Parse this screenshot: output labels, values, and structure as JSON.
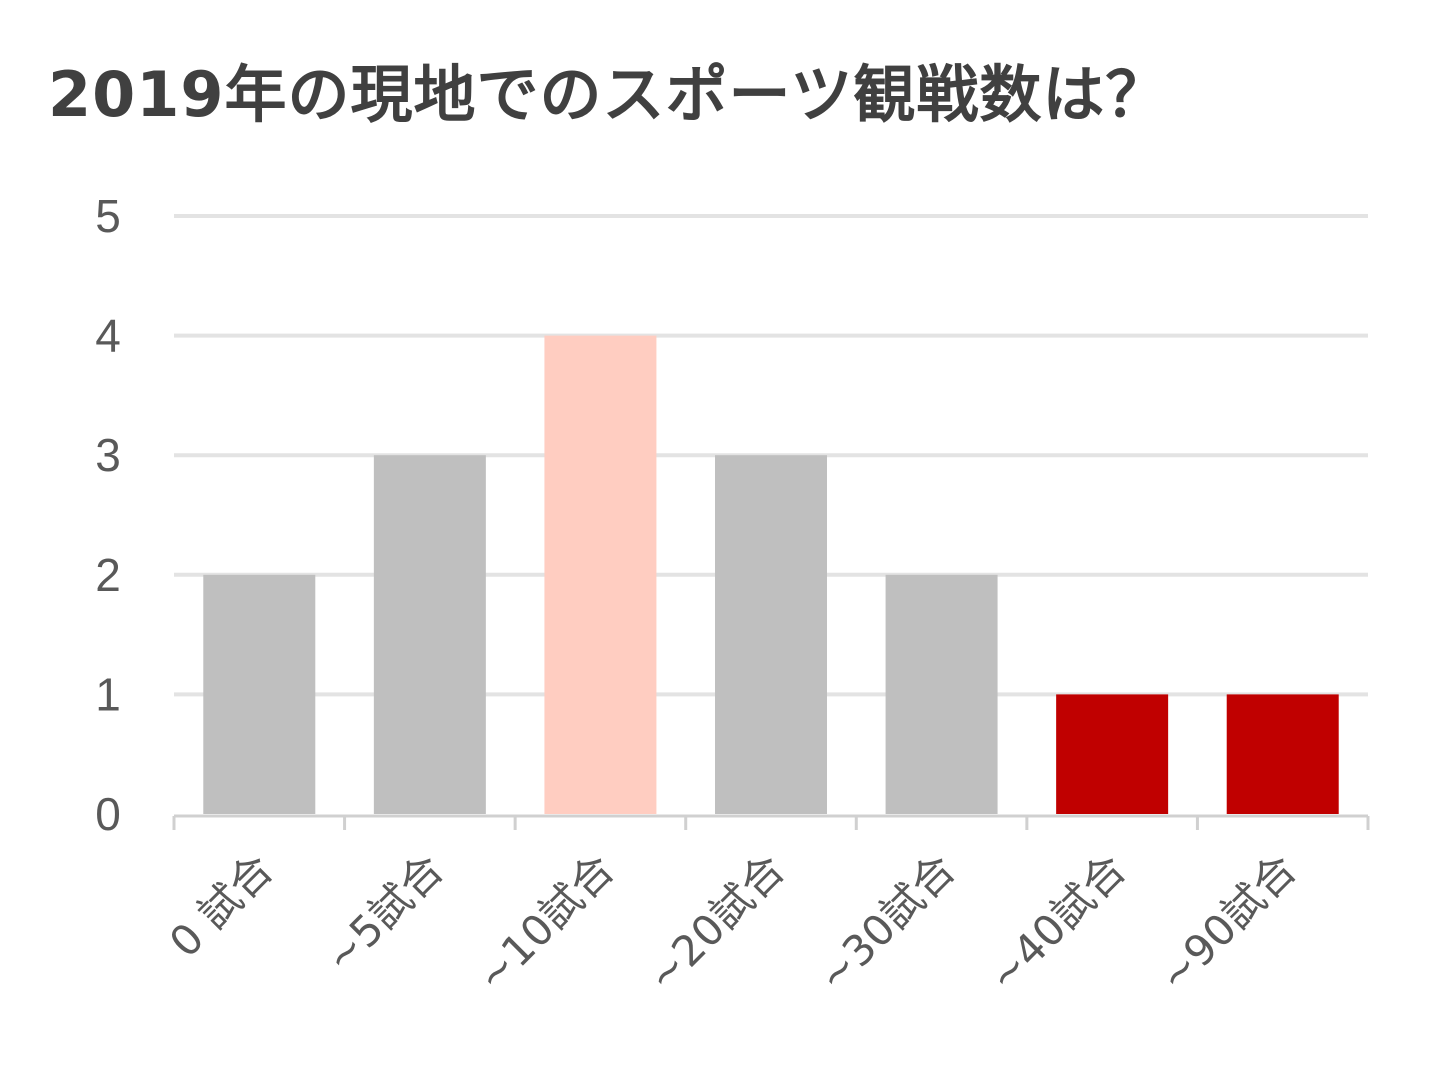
{
  "chart_data": {
    "type": "bar",
    "title": "2019年の現地でのスポーツ観戦数は？",
    "xlabel": "",
    "ylabel": "",
    "categories": [
      "0 試合",
      "~5試合",
      "~10試合",
      "~20試合",
      "~30試合",
      "~40試合",
      "~90試合"
    ],
    "values": [
      2,
      3,
      4,
      3,
      2,
      1,
      1
    ],
    "ylim": [
      0,
      5
    ],
    "yticks": [
      0,
      1,
      2,
      3,
      4,
      5
    ],
    "grid": true,
    "legend": "none",
    "colors": {
      "bars": [
        "#bfbfbf",
        "#bfbfbf",
        "#ffcdc1",
        "#bfbfbf",
        "#bfbfbf",
        "#c00000",
        "#c00000"
      ],
      "gridline": "#e3e3e3",
      "axis": "#d0d0d0",
      "text": "#595959",
      "title": "#404040"
    }
  }
}
